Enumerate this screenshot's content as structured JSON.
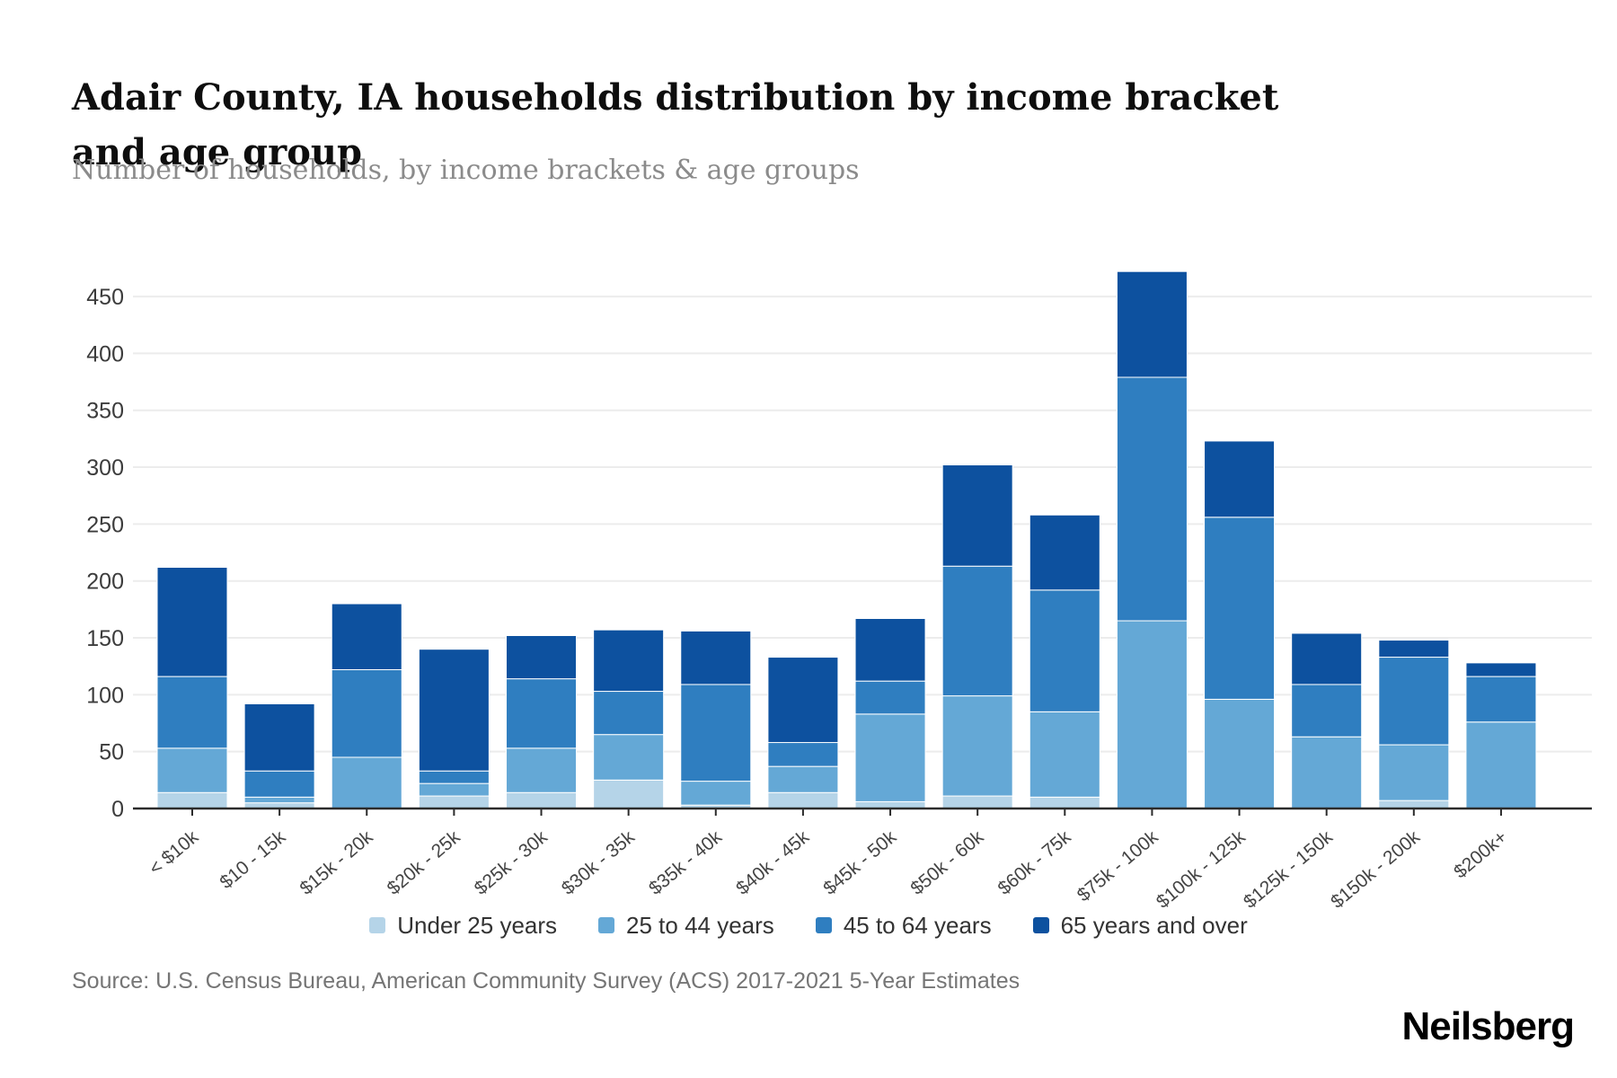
{
  "header": {
    "title": "Adair County, IA households distribution by income bracket and age group",
    "subtitle": "Number of households, by income brackets & age groups"
  },
  "chart_data": {
    "type": "bar",
    "stacked": true,
    "title": "Adair County, IA households distribution by income bracket and age group",
    "subtitle": "Number of households, by income brackets & age groups",
    "categories": [
      "< $10k",
      "$10 - 15k",
      "$15k - 20k",
      "$20k - 25k",
      "$25k - 30k",
      "$30k - 35k",
      "$35k - 40k",
      "$40k - 45k",
      "$45k - 50k",
      "$50k - 60k",
      "$60k - 75k",
      "$75k - 100k",
      "$100k - 125k",
      "$125k - 150k",
      "$150k - 200k",
      "$200k+"
    ],
    "series": [
      {
        "name": "Under 25 years",
        "color": "#b5d4e8",
        "values": [
          14,
          5,
          0,
          11,
          14,
          25,
          3,
          14,
          6,
          11,
          10,
          0,
          0,
          0,
          7,
          0
        ]
      },
      {
        "name": "25 to 44 years",
        "color": "#64a8d6",
        "values": [
          39,
          5,
          45,
          11,
          39,
          40,
          21,
          23,
          77,
          88,
          75,
          165,
          96,
          63,
          49,
          76
        ]
      },
      {
        "name": "45 to 64 years",
        "color": "#2f7ec0",
        "values": [
          63,
          23,
          77,
          11,
          61,
          38,
          85,
          21,
          29,
          114,
          107,
          214,
          160,
          46,
          77,
          40
        ]
      },
      {
        "name": "65 years and over",
        "color": "#0d519f",
        "values": [
          96,
          59,
          58,
          107,
          38,
          54,
          47,
          75,
          55,
          89,
          66,
          93,
          67,
          45,
          15,
          12
        ]
      }
    ],
    "xlabel": "",
    "ylabel": "",
    "ylim": [
      0,
      475
    ],
    "yticks": [
      0,
      50,
      100,
      150,
      200,
      250,
      300,
      350,
      400,
      450
    ],
    "grid": true,
    "legend_position": "bottom"
  },
  "footer": {
    "source": "Source: U.S. Census Bureau, American Community Survey (ACS) 2017-2021 5-Year Estimates",
    "logo": "Neilsberg"
  }
}
